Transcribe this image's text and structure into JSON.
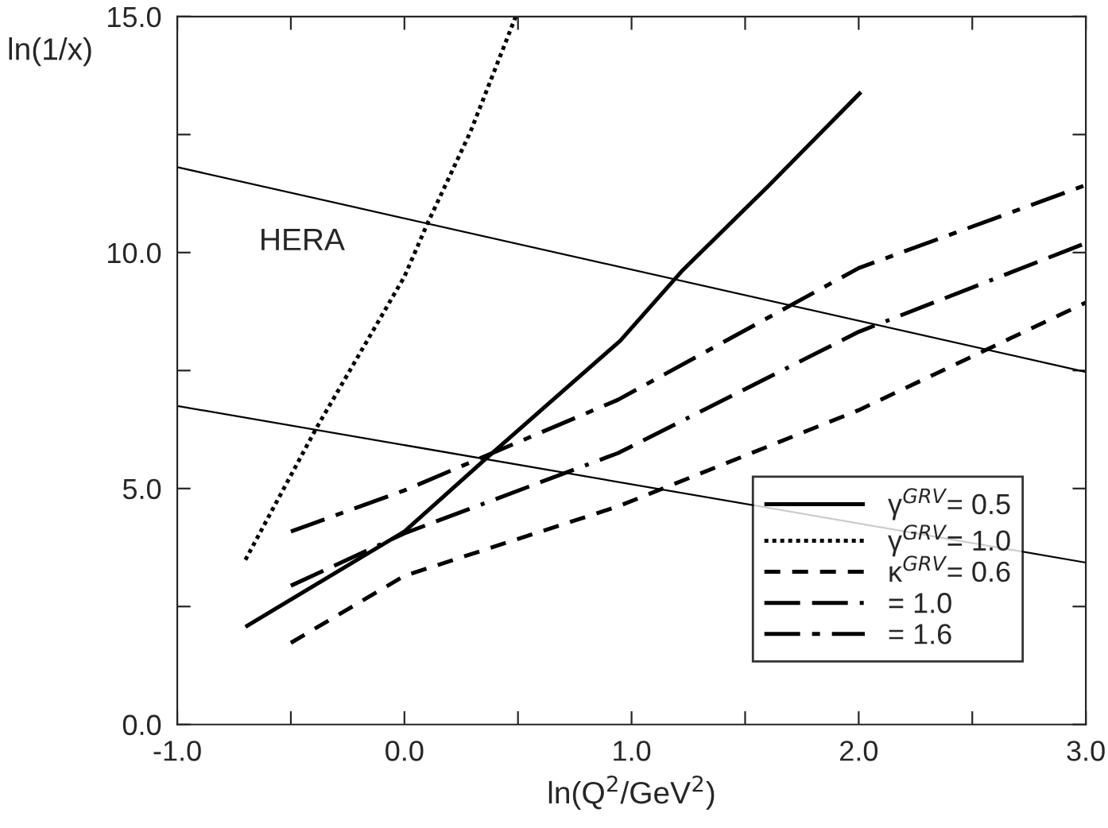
{
  "chart_data": {
    "type": "line",
    "xlabel": "ln(Q$^{2}$/GeV$^{2}$)",
    "ylabel": "ln(1/x)",
    "annotations": [
      "HERA"
    ],
    "xlim": [
      -1,
      3
    ],
    "ylim": [
      0,
      15
    ],
    "xticks": [
      {
        "value": -1,
        "label": "-1.0"
      },
      {
        "value": -0.5,
        "label": null
      },
      {
        "value": 0,
        "label": "0.0"
      },
      {
        "value": 0.5,
        "label": null
      },
      {
        "value": 1,
        "label": "1.0"
      },
      {
        "value": 1.5,
        "label": null
      },
      {
        "value": 2,
        "label": "2.0"
      },
      {
        "value": 2.5,
        "label": null
      },
      {
        "value": 3,
        "label": "3.0"
      }
    ],
    "yticks": [
      {
        "value": 0,
        "label": "0.0"
      },
      {
        "value": 2.5,
        "label": null
      },
      {
        "value": 5,
        "label": "5.0"
      },
      {
        "value": 7.5,
        "label": null
      },
      {
        "value": 10,
        "label": "10.0"
      },
      {
        "value": 12.5,
        "label": null
      },
      {
        "value": 15,
        "label": "15.0"
      }
    ],
    "grid": false,
    "legend": "bottom right",
    "marker": "none",
    "series": [
      {
        "name": "γ$^{GRV}$= 0.5",
        "color": "#000000",
        "line_style": "solid",
        "x": [
          -0.7,
          0,
          0.36,
          0.95,
          1.22,
          1.6,
          2.01
        ],
        "values": [
          2.07,
          4.09,
          5.64,
          8.13,
          9.6,
          11.4,
          13.4
        ]
      },
      {
        "name": "γ$^{GRV}$= 1.0",
        "color": "#000000",
        "line_style": "dotted",
        "x": [
          -0.7,
          -0.39,
          0,
          0.1,
          0.29,
          0.49
        ],
        "values": [
          3.49,
          6.26,
          9.49,
          10.6,
          12.55,
          15.0
        ]
      },
      {
        "name": "κ$^{GRV}$= 0.6",
        "color": "#000000",
        "line_style": "dashed",
        "x": [
          -0.5,
          0,
          0.94,
          2,
          3
        ],
        "values": [
          1.73,
          3.15,
          4.62,
          6.66,
          8.94
        ]
      },
      {
        "name": "= 1.0",
        "color": "#000000",
        "line_style": "longdash",
        "x": [
          -0.5,
          0,
          0.94,
          2,
          3
        ],
        "values": [
          2.94,
          4.05,
          5.75,
          8.32,
          10.2
        ]
      },
      {
        "name": "= 1.6",
        "color": "#000000",
        "line_style": "dashdot",
        "x": [
          -0.5,
          0,
          0.94,
          2,
          3
        ],
        "values": [
          4.09,
          4.96,
          6.88,
          9.67,
          11.43
        ]
      },
      {
        "color": "#000000",
        "line_style": "solid",
        "x": [
          -1,
          3
        ],
        "values": [
          11.81,
          7.47
        ]
      },
      {
        "color": "#000000",
        "line_style": "solid",
        "x": [
          -1,
          3
        ],
        "values": [
          6.75,
          3.43
        ]
      }
    ]
  }
}
